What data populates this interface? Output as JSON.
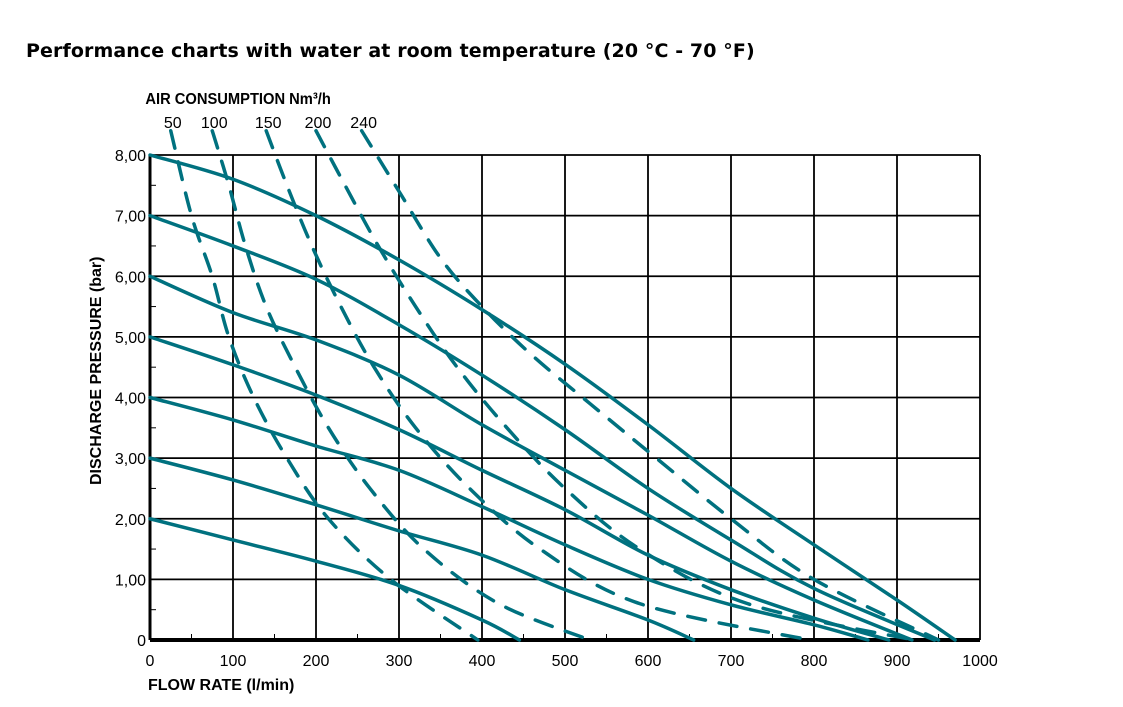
{
  "chart_data": {
    "type": "line",
    "title": "Performance charts with water at room temperature (20 °C - 70 °F)",
    "xlabel": "FLOW RATE (l/min)",
    "ylabel": "DISCHARGE PRESSURE (bar)",
    "air_label": "AIR CONSUMPTION Nm³/h",
    "xlim": [
      0,
      1000
    ],
    "ylim": [
      0,
      8
    ],
    "grid": true,
    "x_ticks": [
      "0",
      "100",
      "200",
      "300",
      "400",
      "500",
      "600",
      "700",
      "800",
      "900",
      "1000"
    ],
    "y_ticks": [
      "0",
      "1,00",
      "2,00",
      "3,00",
      "4,00",
      "5,00",
      "6,00",
      "7,00",
      "8,00"
    ],
    "color": "#00717f",
    "pressure_curves": [
      {
        "name": "8 bar",
        "points": [
          [
            0,
            8
          ],
          [
            100,
            7.6
          ],
          [
            200,
            7.0
          ],
          [
            300,
            6.27
          ],
          [
            400,
            5.45
          ],
          [
            500,
            4.55
          ],
          [
            600,
            3.55
          ],
          [
            700,
            2.5
          ],
          [
            800,
            1.57
          ],
          [
            900,
            0.66
          ],
          [
            970,
            0
          ]
        ]
      },
      {
        "name": "7 bar",
        "points": [
          [
            0,
            7
          ],
          [
            100,
            6.5
          ],
          [
            200,
            5.95
          ],
          [
            300,
            5.2
          ],
          [
            400,
            4.37
          ],
          [
            500,
            3.47
          ],
          [
            600,
            2.5
          ],
          [
            700,
            1.65
          ],
          [
            800,
            0.85
          ],
          [
            945,
            0
          ]
        ]
      },
      {
        "name": "6 bar",
        "points": [
          [
            0,
            6
          ],
          [
            100,
            5.4
          ],
          [
            200,
            4.95
          ],
          [
            300,
            4.37
          ],
          [
            400,
            3.55
          ],
          [
            500,
            2.8
          ],
          [
            600,
            2.06
          ],
          [
            700,
            1.3
          ],
          [
            800,
            0.66
          ],
          [
            918,
            0
          ]
        ]
      },
      {
        "name": "5 bar",
        "points": [
          [
            0,
            5
          ],
          [
            100,
            4.54
          ],
          [
            200,
            4.04
          ],
          [
            300,
            3.47
          ],
          [
            400,
            2.8
          ],
          [
            500,
            2.15
          ],
          [
            600,
            1.4
          ],
          [
            700,
            0.83
          ],
          [
            800,
            0.36
          ],
          [
            890,
            0
          ]
        ]
      },
      {
        "name": "4 bar",
        "points": [
          [
            0,
            4
          ],
          [
            100,
            3.63
          ],
          [
            200,
            3.2
          ],
          [
            300,
            2.8
          ],
          [
            400,
            2.2
          ],
          [
            500,
            1.57
          ],
          [
            600,
            1.0
          ],
          [
            700,
            0.58
          ],
          [
            800,
            0.25
          ],
          [
            865,
            0
          ]
        ]
      },
      {
        "name": "3 bar",
        "points": [
          [
            0,
            3
          ],
          [
            100,
            2.64
          ],
          [
            200,
            2.23
          ],
          [
            300,
            1.8
          ],
          [
            400,
            1.4
          ],
          [
            500,
            0.83
          ],
          [
            600,
            0.33
          ],
          [
            655,
            0
          ]
        ]
      },
      {
        "name": "2 bar",
        "points": [
          [
            0,
            2
          ],
          [
            100,
            1.65
          ],
          [
            200,
            1.3
          ],
          [
            300,
            0.9
          ],
          [
            400,
            0.33
          ],
          [
            445,
            0
          ]
        ]
      }
    ],
    "air_curves": [
      {
        "label": "50",
        "points": [
          [
            25,
            8.4
          ],
          [
            50,
            7
          ],
          [
            75,
            6
          ],
          [
            95,
            5
          ],
          [
            125,
            4
          ],
          [
            165,
            3
          ],
          [
            215,
            2
          ],
          [
            290,
            1
          ],
          [
            395,
            0
          ]
        ]
      },
      {
        "label": "100",
        "points": [
          [
            75,
            8.4
          ],
          [
            95,
            7.5
          ],
          [
            115,
            6.5
          ],
          [
            140,
            5.5
          ],
          [
            175,
            4.5
          ],
          [
            215,
            3.5
          ],
          [
            265,
            2.5
          ],
          [
            330,
            1.5
          ],
          [
            420,
            0.6
          ],
          [
            530,
            0
          ]
        ]
      },
      {
        "label": "150",
        "points": [
          [
            140,
            8.4
          ],
          [
            165,
            7.5
          ],
          [
            195,
            6.5
          ],
          [
            230,
            5.5
          ],
          [
            270,
            4.5
          ],
          [
            320,
            3.5
          ],
          [
            385,
            2.5
          ],
          [
            470,
            1.5
          ],
          [
            590,
            0.6
          ],
          [
            795,
            0
          ]
        ]
      },
      {
        "label": "200",
        "points": [
          [
            200,
            8.4
          ],
          [
            235,
            7.5
          ],
          [
            275,
            6.5
          ],
          [
            320,
            5.5
          ],
          [
            370,
            4.5
          ],
          [
            430,
            3.5
          ],
          [
            500,
            2.5
          ],
          [
            590,
            1.5
          ],
          [
            720,
            0.6
          ],
          [
            920,
            0
          ]
        ]
      },
      {
        "label": "240",
        "points": [
          [
            255,
            8.4
          ],
          [
            300,
            7.4
          ],
          [
            350,
            6.3
          ],
          [
            400,
            5.5
          ],
          [
            460,
            4.7
          ],
          [
            530,
            3.9
          ],
          [
            610,
            3.0
          ],
          [
            700,
            2.0
          ],
          [
            800,
            1.0
          ],
          [
            950,
            0
          ]
        ]
      }
    ]
  }
}
